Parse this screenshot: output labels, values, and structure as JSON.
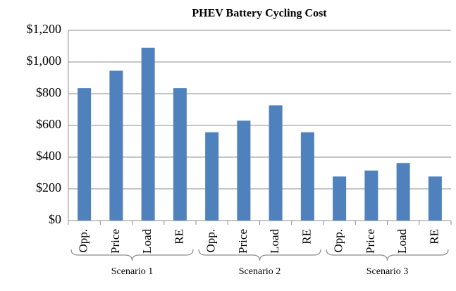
{
  "chart_data": {
    "type": "bar",
    "title": "PHEV Battery Cycling Cost",
    "categories": [
      "Opp.",
      "Price",
      "Load",
      "RE",
      "Opp.",
      "Price",
      "Load",
      "RE",
      "Opp.",
      "Price",
      "Load",
      "RE"
    ],
    "groups": [
      "Scenario 1",
      "Scenario 2",
      "Scenario 3"
    ],
    "values": [
      835,
      945,
      1090,
      835,
      557,
      630,
      727,
      557,
      278,
      315,
      363,
      278
    ],
    "color": "#4f81bd",
    "ylim": [
      0,
      1200
    ],
    "yticks": [
      {
        "value": 0,
        "label": "$0"
      },
      {
        "value": 200,
        "label": "$200"
      },
      {
        "value": 400,
        "label": "$400"
      },
      {
        "value": 600,
        "label": "$600"
      },
      {
        "value": 800,
        "label": "$800"
      },
      {
        "value": 1000,
        "label": "$1,000"
      },
      {
        "value": 1200,
        "label": "$1,200"
      }
    ],
    "grid": true
  }
}
